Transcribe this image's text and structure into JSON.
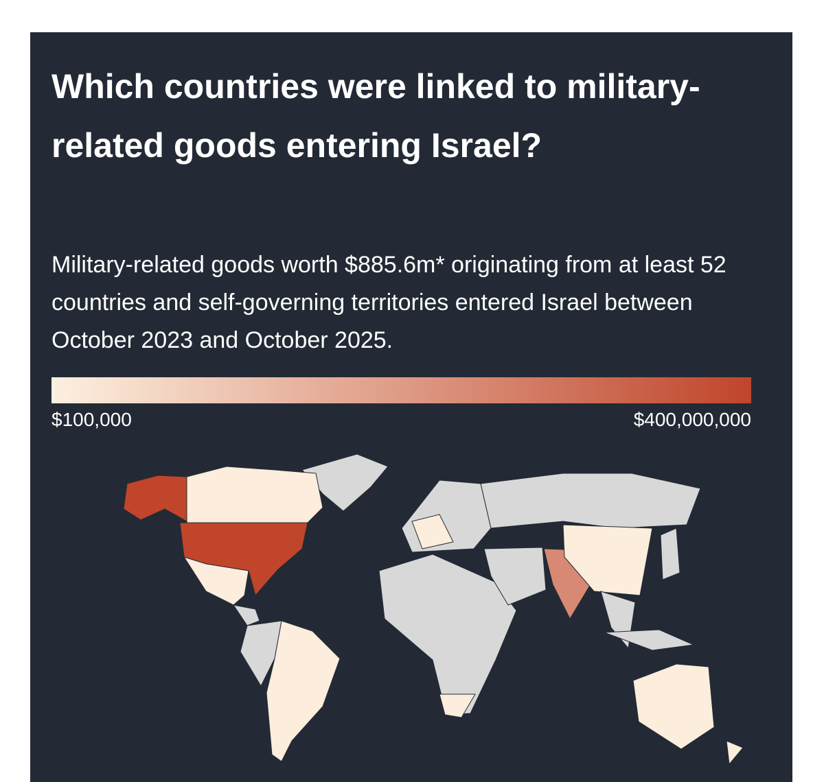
{
  "header": {
    "title": "Which countries were linked to military-related goods entering Israel?",
    "subtitle": "Military-related goods worth $885.6m* originating from at least 52 countries and self-governing territories entered Israel between October 2023 and October 2025."
  },
  "legend": {
    "min": {
      "value": 100000,
      "label": "$100,000"
    },
    "max": {
      "value": 400000000,
      "label": "$400,000,000"
    },
    "colors": [
      "#fdf0e0",
      "#c0452b"
    ],
    "no_data_color": "#d8d8d8"
  }
}
